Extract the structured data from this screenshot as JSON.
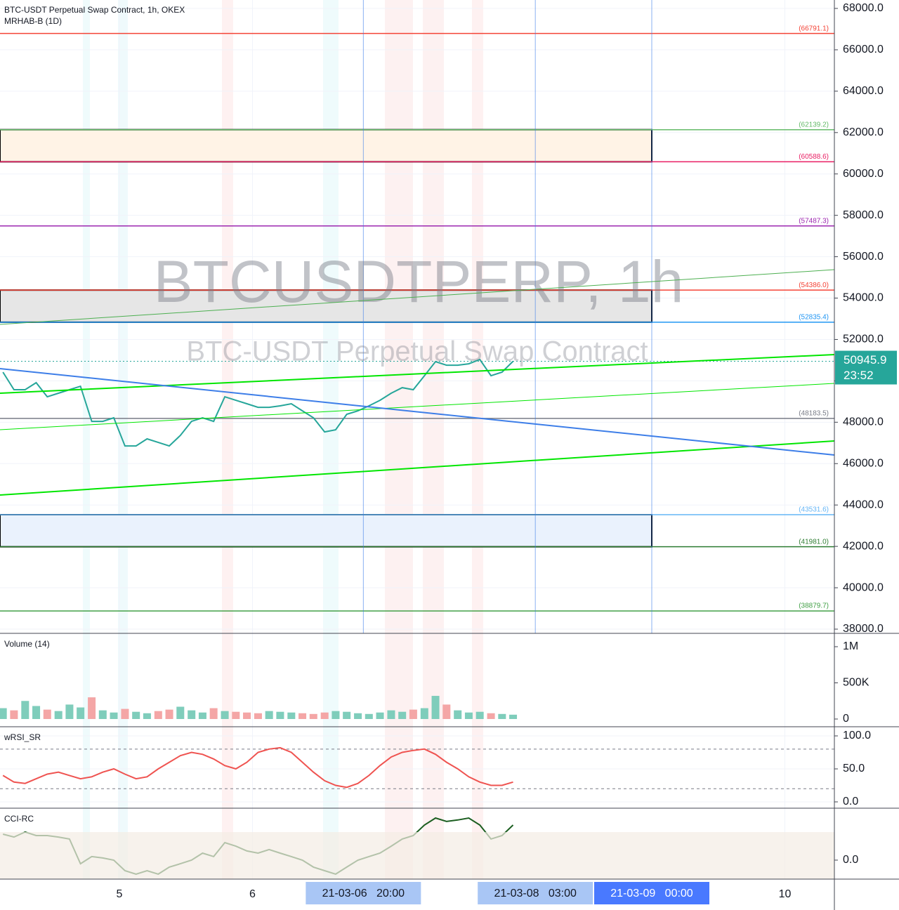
{
  "chart_data": [
    {
      "type": "line",
      "title": "BTC-USDT Perpetual Swap Contract, 1h, OKEX",
      "subtitle": "MRHAB-B (1D)",
      "watermark": "BTCUSDTPERP, 1h",
      "watermark_subtitle": "BTC-USDT Perpetual Swap Contract",
      "x": [
        4.125,
        4.208,
        4.292,
        4.375,
        4.458,
        4.542,
        4.625,
        4.708,
        4.792,
        4.875,
        4.958,
        5.042,
        5.125,
        5.208,
        5.292,
        5.375,
        5.458,
        5.542,
        5.625,
        5.708,
        5.792,
        5.875,
        5.958,
        6.042,
        6.125,
        6.208,
        6.292,
        6.375,
        6.458,
        6.542,
        6.625,
        6.708,
        6.792,
        6.875,
        6.958,
        7.042,
        7.125,
        7.208,
        7.292,
        7.375,
        7.458,
        7.542,
        7.625,
        7.708,
        7.792,
        7.875,
        7.958
      ],
      "values": [
        50419,
        49571,
        49571,
        49910,
        49231,
        49401,
        49571,
        49740,
        48043,
        48043,
        48213,
        46855,
        46855,
        47195,
        47025,
        46855,
        47364,
        48043,
        48213,
        48043,
        49231,
        49061,
        48892,
        48722,
        48722,
        48790,
        48892,
        48552,
        48213,
        47534,
        47636,
        48383,
        48552,
        48790,
        49061,
        49401,
        49672,
        49571,
        50249,
        50928,
        50758,
        50758,
        50826,
        51030,
        50249,
        50419,
        50945.9
      ],
      "color": "#26a69a",
      "xlim": [
        4.103,
        10.372
      ],
      "ylim": [
        37864,
        68407
      ],
      "xticks": [
        5,
        6,
        10
      ],
      "yticks": [
        {
          "value": 38000,
          "label": "38000.0"
        },
        {
          "value": 40000,
          "label": "40000.0"
        },
        {
          "value": 42000,
          "label": "42000.0"
        },
        {
          "value": 44000,
          "label": "44000.0"
        },
        {
          "value": 46000,
          "label": "46000.0"
        },
        {
          "value": 48000,
          "label": "48000.0"
        },
        {
          "value": 50000,
          "label": "50000.0"
        },
        {
          "value": 52000,
          "label": "52000.0"
        },
        {
          "value": 54000,
          "label": "54000.0"
        },
        {
          "value": 56000,
          "label": "56000.0"
        },
        {
          "value": 58000,
          "label": "58000.0"
        },
        {
          "value": 60000,
          "label": "60000.0"
        },
        {
          "value": 62000,
          "label": "62000.0"
        },
        {
          "value": 64000,
          "label": "64000.0"
        },
        {
          "value": 66000,
          "label": "66000.0"
        },
        {
          "value": 68000,
          "label": "68000.0"
        }
      ],
      "levels": [
        {
          "value": 66791.1,
          "label": "(66791.1)",
          "color": "#f44336"
        },
        {
          "value": 62139.2,
          "label": "(62139.2)",
          "color": "#66bb6a"
        },
        {
          "value": 60588.6,
          "label": "(60588.6)",
          "color": "#e91e63"
        },
        {
          "value": 57487.3,
          "label": "(57487.3)",
          "color": "#9c27b0"
        },
        {
          "value": 54386.0,
          "label": "(54386.0)",
          "color": "#f44336"
        },
        {
          "value": 52835.4,
          "label": "(52835.4)",
          "color": "#2196f3"
        },
        {
          "value": 48183.5,
          "label": "(48183.5)",
          "color": "#787b86"
        },
        {
          "value": 43531.6,
          "label": "(43531.6)",
          "color": "#64b5f6"
        },
        {
          "value": 41981.0,
          "label": "(41981.0)",
          "color": "#2e7d32"
        },
        {
          "value": 38879.7,
          "label": "(38879.7)",
          "color": "#43a047"
        }
      ],
      "zones": [
        {
          "low": 60588.6,
          "high": 62139.2,
          "color": "#fff3e6"
        },
        {
          "low": 52835.4,
          "high": 54386.0,
          "color": "#e6e6e6"
        },
        {
          "low": 41981.0,
          "high": 43531.6,
          "color": "#eaf2fd"
        }
      ],
      "last_price": 50945.9,
      "last_price_color": "#26a69a",
      "countdown": "23:52",
      "time_labels": [
        {
          "value": 6.833,
          "label": "21-03-06   20:00"
        },
        {
          "value": 8.125,
          "label": "21-03-08   03:00"
        },
        {
          "value": 9.0,
          "label": "21-03-09   00:00"
        }
      ]
    },
    {
      "type": "bar",
      "title": "Volume (14)",
      "values": [
        150000,
        120000,
        250000,
        180000,
        130000,
        110000,
        200000,
        160000,
        300000,
        120000,
        90000,
        140000,
        100000,
        80000,
        110000,
        130000,
        170000,
        120000,
        90000,
        150000,
        110000,
        100000,
        90000,
        80000,
        110000,
        100000,
        90000,
        80000,
        70000,
        90000,
        110000,
        100000,
        80000,
        70000,
        90000,
        120000,
        100000,
        130000,
        150000,
        320000,
        200000,
        120000,
        90000,
        100000,
        80000,
        70000,
        60000
      ],
      "ylim": [
        -97000,
        1165000
      ],
      "yticks": [
        0,
        {
          "value": 500000,
          "label": "500K"
        },
        {
          "value": 1000000,
          "label": "1M"
        }
      ]
    },
    {
      "type": "line",
      "title": "wRSI_SR",
      "color": "#ef5350",
      "values": [
        40,
        30,
        28,
        35,
        42,
        45,
        40,
        35,
        38,
        45,
        50,
        42,
        35,
        38,
        50,
        60,
        70,
        75,
        72,
        65,
        55,
        50,
        60,
        75,
        80,
        82,
        75,
        60,
        45,
        32,
        25,
        22,
        28,
        40,
        55,
        68,
        75,
        78,
        80,
        72,
        60,
        50,
        38,
        30,
        25,
        25,
        30
      ],
      "ylim": [
        -8.5,
        112.8
      ],
      "yticks": [
        {
          "value": 0,
          "label": "0.0"
        },
        {
          "value": 50,
          "label": "50.0"
        },
        {
          "value": 100,
          "label": "100.0"
        }
      ],
      "dashed_levels": [
        20,
        80
      ]
    },
    {
      "type": "line",
      "title": "CCI-RC",
      "color": "#1b5e20",
      "values": [
        145,
        129,
        157,
        137,
        137,
        129,
        118,
        -20,
        20,
        12,
        0,
        -59,
        -78,
        -59,
        -78,
        -39,
        -20,
        0,
        39,
        20,
        98,
        78,
        51,
        39,
        59,
        39,
        20,
        0,
        -39,
        -59,
        -78,
        -39,
        0,
        20,
        39,
        78,
        118,
        137,
        196,
        235,
        216,
        224,
        235,
        196,
        118,
        137,
        196
      ],
      "ylim": [
        -106,
        286
      ],
      "yticks": [
        {
          "value": 0,
          "label": "0.0"
        }
      ]
    }
  ]
}
